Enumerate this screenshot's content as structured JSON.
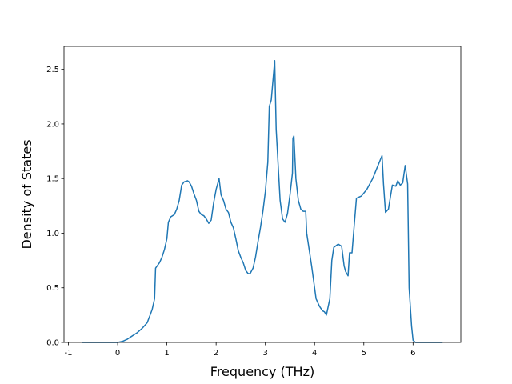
{
  "chart_data": {
    "type": "line",
    "x_label": "Frequency (THz)",
    "y_label": "Density of States",
    "xlim": [
      -1.09,
      6.97
    ],
    "ylim": [
      0,
      2.71
    ],
    "xticks": [
      -1,
      0,
      1,
      2,
      3,
      4,
      5,
      6
    ],
    "yticks": [
      {
        "value": 0,
        "label": "0.0"
      },
      {
        "value": 0.5,
        "label": "0.5"
      },
      {
        "value": 1,
        "label": "1.0"
      },
      {
        "value": 1.5,
        "label": "1.5"
      },
      {
        "value": 2,
        "label": "2.0"
      },
      {
        "value": 2.5,
        "label": "2.5"
      }
    ],
    "grid": false,
    "series": [
      {
        "name": "DOS",
        "color": "#1f77b4",
        "x": [
          -0.72,
          0,
          0.1,
          0.2,
          0.3,
          0.4,
          0.5,
          0.6,
          0.65,
          0.7,
          0.75,
          0.77,
          0.85,
          0.9,
          0.95,
          1.0,
          1.03,
          1.08,
          1.15,
          1.2,
          1.25,
          1.3,
          1.35,
          1.42,
          1.45,
          1.5,
          1.55,
          1.6,
          1.65,
          1.7,
          1.75,
          1.8,
          1.85,
          1.9,
          1.95,
          2.0,
          2.06,
          2.1,
          2.15,
          2.2,
          2.25,
          2.3,
          2.35,
          2.4,
          2.45,
          2.5,
          2.55,
          2.6,
          2.65,
          2.69,
          2.75,
          2.8,
          2.85,
          2.9,
          2.95,
          3.0,
          3.05,
          3.08,
          3.12,
          3.19,
          3.22,
          3.3,
          3.35,
          3.4,
          3.45,
          3.5,
          3.55,
          3.56,
          3.58,
          3.62,
          3.67,
          3.72,
          3.77,
          3.82,
          3.84,
          3.94,
          4.03,
          4.1,
          4.16,
          4.2,
          4.24,
          4.31,
          4.35,
          4.39,
          4.48,
          4.55,
          4.6,
          4.63,
          4.68,
          4.71,
          4.76,
          4.81,
          4.85,
          4.95,
          5.06,
          5.18,
          5.27,
          5.37,
          5.4,
          5.44,
          5.5,
          5.55,
          5.58,
          5.65,
          5.69,
          5.74,
          5.79,
          5.84,
          5.89,
          5.92,
          5.97,
          6.0,
          6.05,
          6.6
        ],
        "values": [
          0,
          0,
          0.01,
          0.03,
          0.06,
          0.09,
          0.13,
          0.18,
          0.24,
          0.3,
          0.4,
          0.68,
          0.73,
          0.78,
          0.85,
          0.95,
          1.1,
          1.15,
          1.17,
          1.22,
          1.3,
          1.44,
          1.47,
          1.48,
          1.47,
          1.43,
          1.36,
          1.3,
          1.2,
          1.17,
          1.16,
          1.13,
          1.09,
          1.12,
          1.28,
          1.4,
          1.5,
          1.35,
          1.3,
          1.22,
          1.19,
          1.1,
          1.05,
          0.95,
          0.84,
          0.78,
          0.73,
          0.66,
          0.63,
          0.63,
          0.68,
          0.78,
          0.92,
          1.05,
          1.2,
          1.38,
          1.65,
          2.16,
          2.22,
          2.58,
          1.95,
          1.3,
          1.13,
          1.1,
          1.18,
          1.35,
          1.55,
          1.87,
          1.89,
          1.5,
          1.3,
          1.22,
          1.2,
          1.2,
          1.0,
          0.7,
          0.4,
          0.33,
          0.29,
          0.28,
          0.25,
          0.4,
          0.75,
          0.87,
          0.9,
          0.88,
          0.7,
          0.65,
          0.61,
          0.82,
          0.82,
          1.1,
          1.32,
          1.34,
          1.4,
          1.5,
          1.6,
          1.71,
          1.45,
          1.19,
          1.22,
          1.36,
          1.44,
          1.43,
          1.48,
          1.44,
          1.46,
          1.62,
          1.45,
          0.5,
          0.15,
          0.02,
          0,
          0
        ]
      }
    ]
  }
}
